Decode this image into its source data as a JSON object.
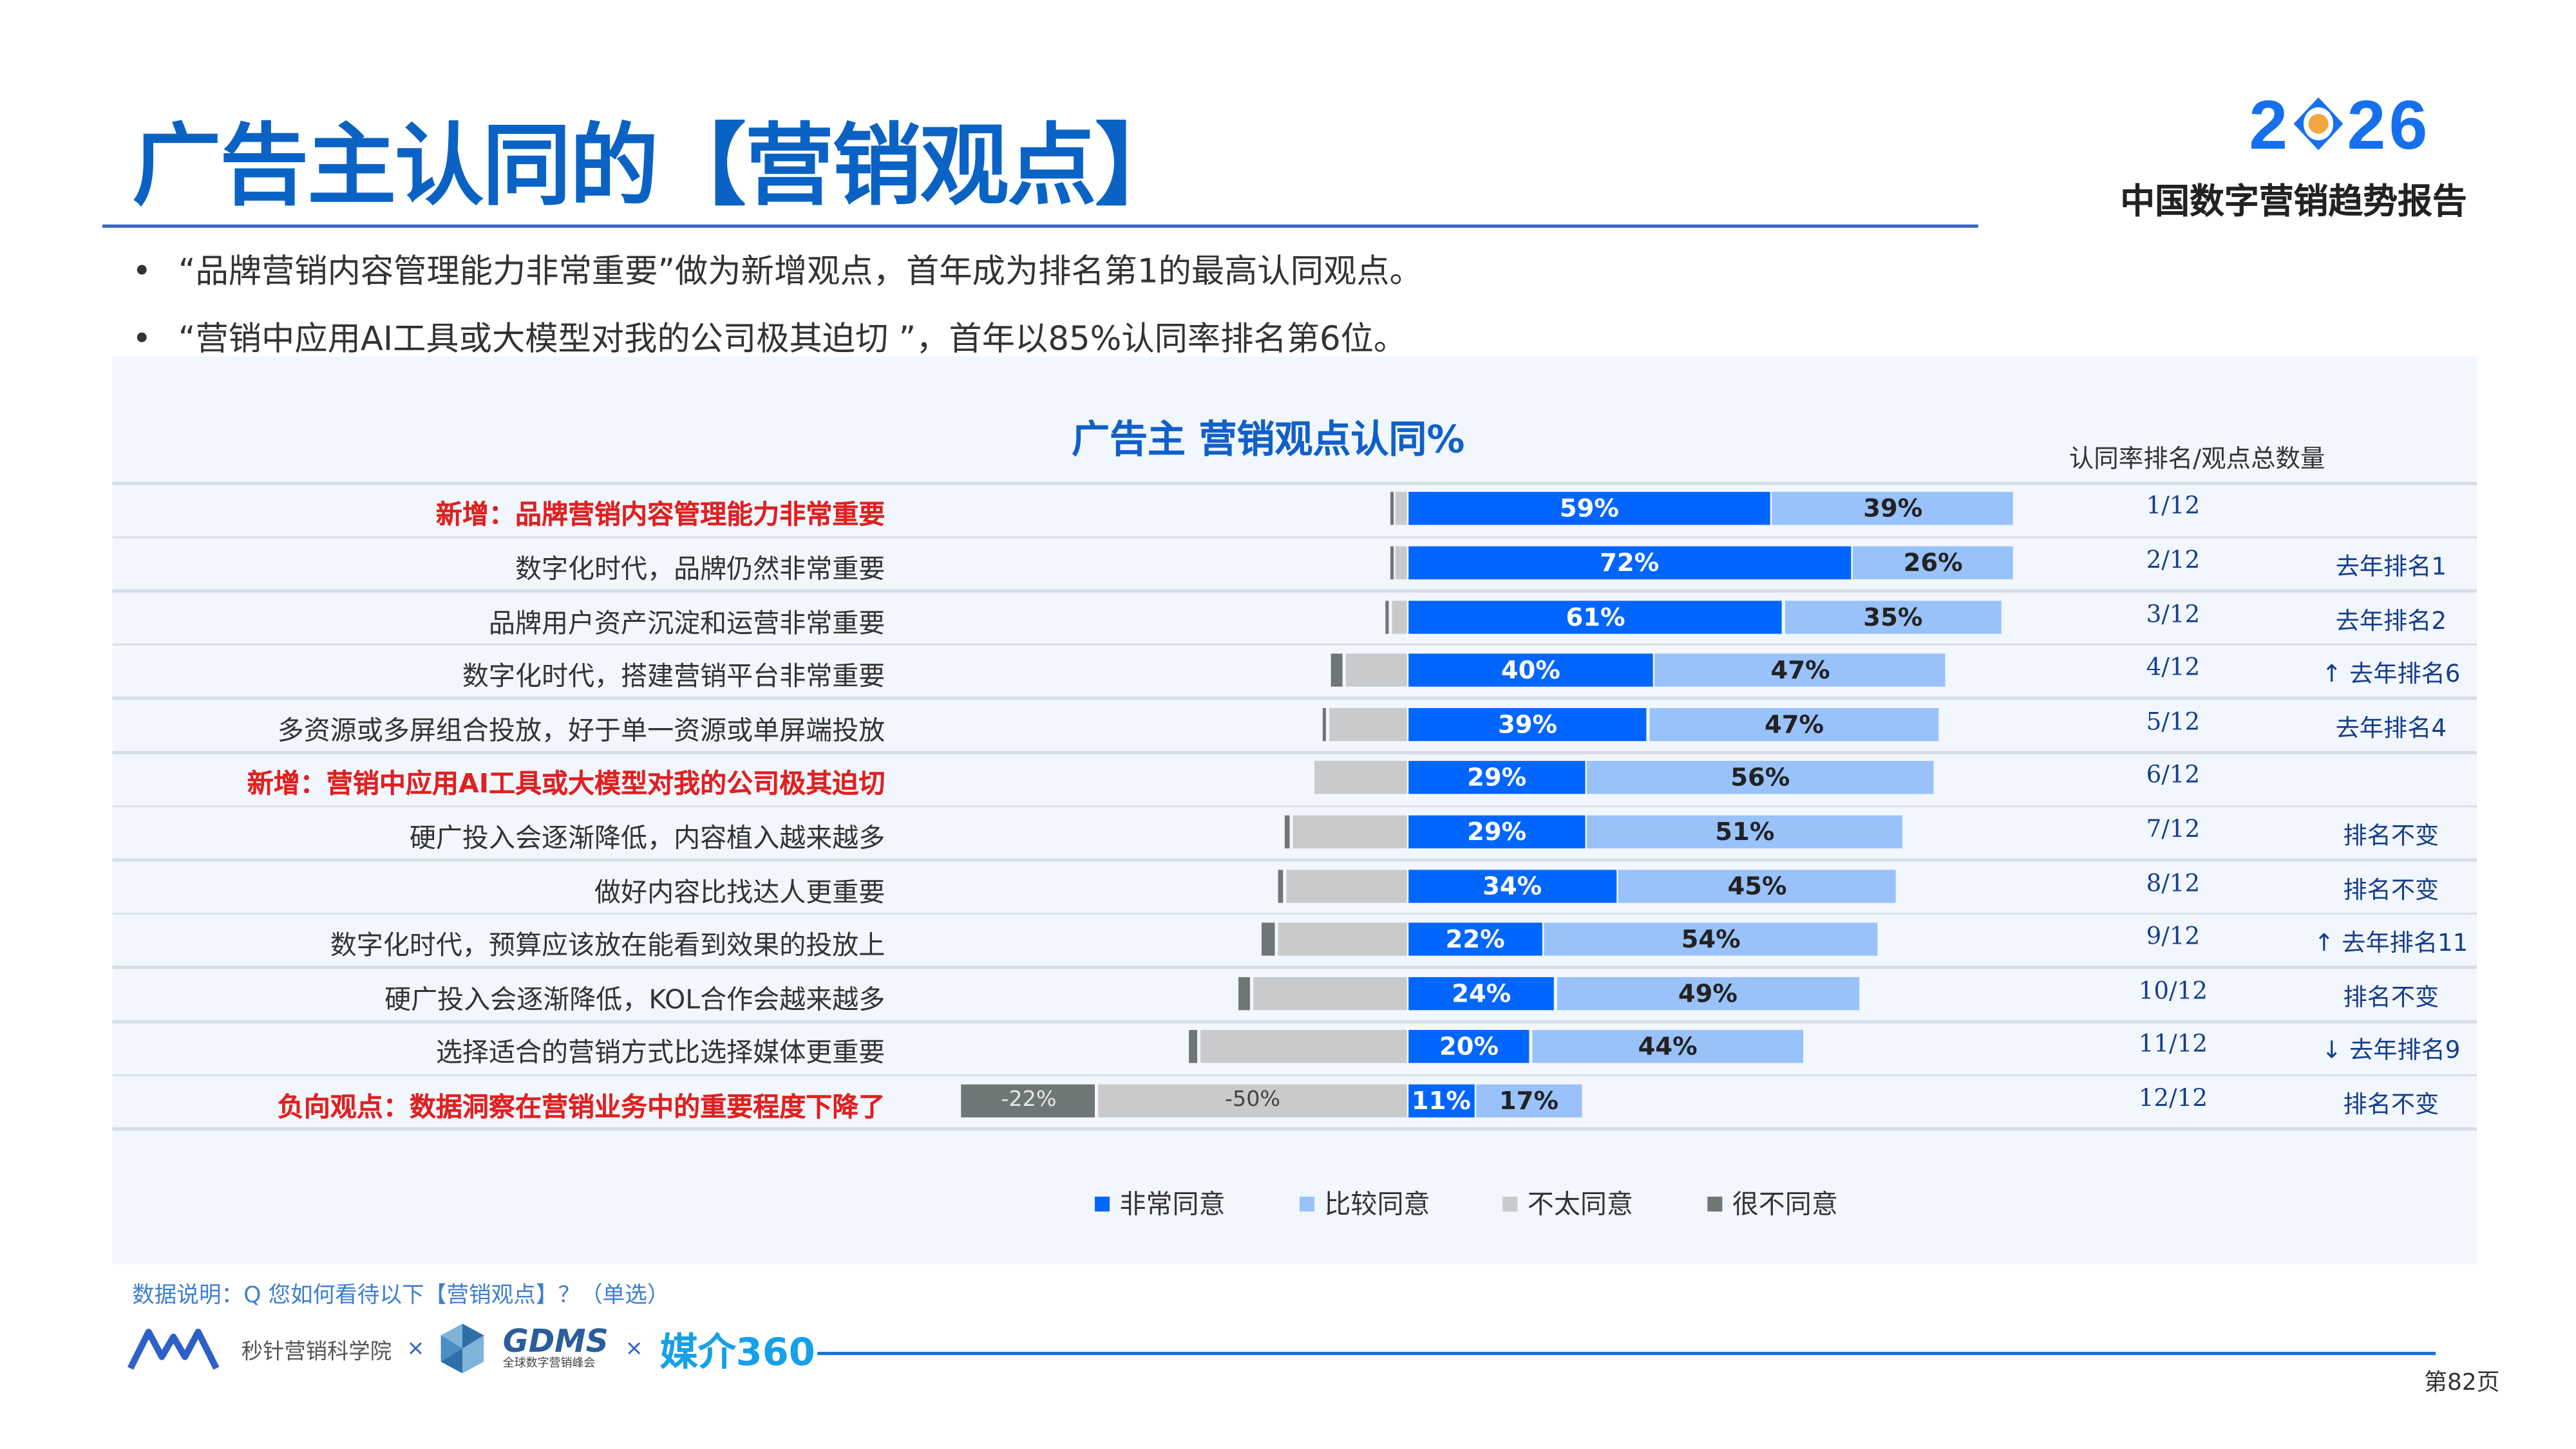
{
  "header": {
    "title": "广告主认同的【营销观点】",
    "brand_year": "2026",
    "brand_year_left": "2",
    "brand_year_right": "26",
    "report_name": "中国数字营销趋势报告"
  },
  "bullets": [
    "“品牌营销内容管理能力非常重要”做为新增观点，首年成为排名第1的最高认同观点。",
    "“营销中应用AI工具或大模型对我的公司极其迫切 ”，首年以85%认同率排名第6位。"
  ],
  "colors": {
    "strongly_agree": "#0066ff",
    "agree": "#99c2fa",
    "disagree": "#c8cacc",
    "strongly_disagree": "#6f7676",
    "title_blue": "#0a63c4",
    "highlight_red": "#e02020"
  },
  "chart_data": {
    "type": "bar",
    "orientation": "horizontal-diverging",
    "title": "广告主 营销观点认同%",
    "rank_column_header": "认同率排名/观点总数量",
    "legend_position": "bottom",
    "series": [
      {
        "name": "非常同意",
        "color": "#0066ff"
      },
      {
        "name": "比较同意",
        "color": "#99c2fa"
      },
      {
        "name": "不太同意",
        "color": "#c8cacc"
      },
      {
        "name": "很不同意",
        "color": "#6f7676"
      }
    ],
    "rows": [
      {
        "label": "新增：品牌营销内容管理能力非常重要",
        "highlight": true,
        "strongly_agree": 59,
        "agree": 39,
        "disagree": 2,
        "strongly_disagree": 0.5,
        "rank": "1/12",
        "note": ""
      },
      {
        "label": "数字化时代，品牌仍然非常重要",
        "highlight": false,
        "strongly_agree": 72,
        "agree": 26,
        "disagree": 2,
        "strongly_disagree": 0.4,
        "rank": "2/12",
        "note": "去年排名1"
      },
      {
        "label": "品牌用户资产沉淀和运营非常重要",
        "highlight": false,
        "strongly_agree": 61,
        "agree": 35,
        "disagree": 2.5,
        "strongly_disagree": 0.7,
        "rank": "3/12",
        "note": "去年排名2"
      },
      {
        "label": "数字化时代，搭建营销平台非常重要",
        "highlight": false,
        "strongly_agree": 40,
        "agree": 47,
        "disagree": 10,
        "strongly_disagree": 2,
        "rank": "4/12",
        "note": "↑ 去年排名6"
      },
      {
        "label": "多资源或多屏组合投放，好于单一资源或单屏端投放",
        "highlight": false,
        "strongly_agree": 39,
        "agree": 47,
        "disagree": 12.5,
        "strongly_disagree": 1,
        "rank": "5/12",
        "note": "去年排名4"
      },
      {
        "label": "新增：营销中应用AI工具或大模型对我的公司极其迫切",
        "highlight": true,
        "strongly_agree": 29,
        "agree": 56,
        "disagree": 15,
        "strongly_disagree": 0,
        "rank": "6/12",
        "note": ""
      },
      {
        "label": "硬广投入会逐渐降低，内容植入越来越多",
        "highlight": false,
        "strongly_agree": 29,
        "agree": 51,
        "disagree": 18.5,
        "strongly_disagree": 1,
        "rank": "7/12",
        "note": "排名不变"
      },
      {
        "label": "做好内容比找达人更重要",
        "highlight": false,
        "strongly_agree": 34,
        "agree": 45,
        "disagree": 19.5,
        "strongly_disagree": 1,
        "rank": "8/12",
        "note": "排名不变"
      },
      {
        "label": "数字化时代，预算应该放在能看到效果的投放上",
        "highlight": false,
        "strongly_agree": 22,
        "agree": 54,
        "disagree": 21,
        "strongly_disagree": 2.3,
        "rank": "9/12",
        "note": "↑ 去年排名11"
      },
      {
        "label": "硬广投入会逐渐降低，KOL合作会越来越多",
        "highlight": false,
        "strongly_agree": 24,
        "agree": 49,
        "disagree": 25,
        "strongly_disagree": 2,
        "rank": "10/12",
        "note": "排名不变"
      },
      {
        "label": "选择适合的营销方式比选择媒体更重要",
        "highlight": false,
        "strongly_agree": 20,
        "agree": 44,
        "disagree": 33.5,
        "strongly_disagree": 1.5,
        "rank": "11/12",
        "note": "↓ 去年排名9"
      },
      {
        "label": "负向观点：数据洞察在营销业务中的重要程度下降了",
        "highlight": true,
        "strongly_agree": 11,
        "agree": 17,
        "disagree": 50,
        "strongly_disagree": 22,
        "rank": "12/12",
        "note": "排名不变",
        "disagree_label": "-50%",
        "strongly_disagree_label": "-22%"
      }
    ]
  },
  "footer": {
    "source_note": "数据说明：Q 您如何看待以下【营销观点】？（单选）",
    "partner1": "秒针营销科学院",
    "sep": "×",
    "partner2": "GDMS",
    "partner2_sub": "全球数字营销峰会",
    "partner3": "媒介360",
    "page": "第82页"
  }
}
